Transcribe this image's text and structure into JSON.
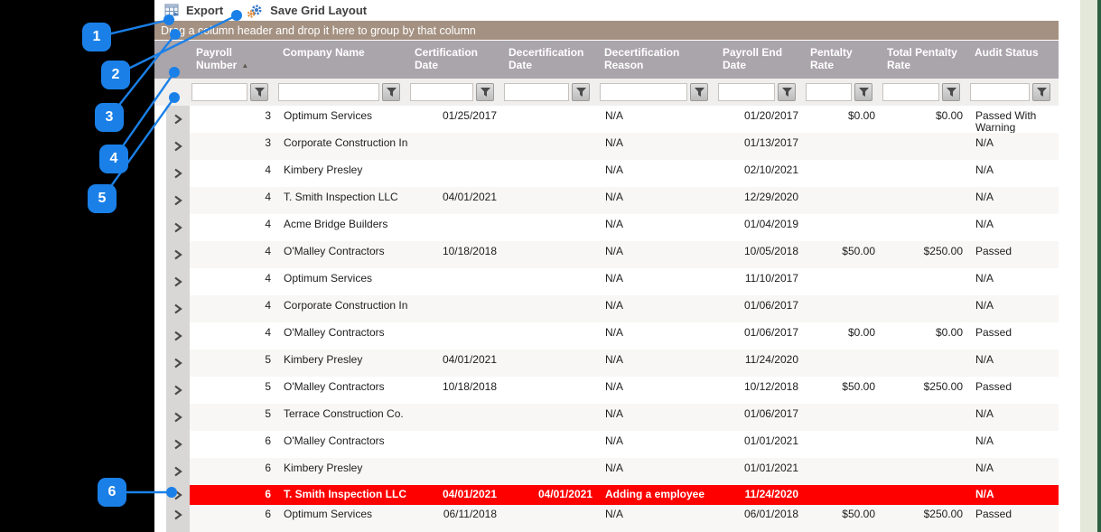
{
  "toolbar": {
    "export_label": "Export",
    "save_layout_label": "Save Grid Layout"
  },
  "grid": {
    "group_hint": "Drag a column header and drop it here to group by that column",
    "columns": [
      {
        "key": "payroll",
        "label": "Payroll Number",
        "align": "right",
        "sort": "asc"
      },
      {
        "key": "company",
        "label": "Company Name",
        "align": "left"
      },
      {
        "key": "cert",
        "label": "Certification Date",
        "align": "right"
      },
      {
        "key": "decert",
        "label": "Decertification Date",
        "align": "right"
      },
      {
        "key": "reason",
        "label": "Decertification Reason",
        "align": "left"
      },
      {
        "key": "end",
        "label": "Payroll End Date",
        "align": "right"
      },
      {
        "key": "rate",
        "label": "Pentalty Rate",
        "align": "right"
      },
      {
        "key": "total",
        "label": "Total Pentalty Rate",
        "align": "right"
      },
      {
        "key": "audit",
        "label": "Audit Status",
        "align": "left"
      }
    ],
    "rows": [
      {
        "payroll": "3",
        "company": "Optimum Services",
        "cert": "01/25/2017",
        "decert": "",
        "reason": "N/A",
        "end": "01/20/2017",
        "rate": "$0.00",
        "total": "$0.00",
        "audit": "Passed With Warning",
        "highlight": false
      },
      {
        "payroll": "3",
        "company": "Corporate Construction Inc.",
        "cert": "",
        "decert": "",
        "reason": "N/A",
        "end": "01/13/2017",
        "rate": "",
        "total": "",
        "audit": "N/A",
        "highlight": false
      },
      {
        "payroll": "4",
        "company": "Kimbery Presley",
        "cert": "",
        "decert": "",
        "reason": "N/A",
        "end": "02/10/2021",
        "rate": "",
        "total": "",
        "audit": "N/A",
        "highlight": false
      },
      {
        "payroll": "4",
        "company": "T. Smith Inspection LLC",
        "cert": "04/01/2021",
        "decert": "",
        "reason": "N/A",
        "end": "12/29/2020",
        "rate": "",
        "total": "",
        "audit": "N/A",
        "highlight": false
      },
      {
        "payroll": "4",
        "company": "Acme Bridge Builders",
        "cert": "",
        "decert": "",
        "reason": "N/A",
        "end": "01/04/2019",
        "rate": "",
        "total": "",
        "audit": "N/A",
        "highlight": false
      },
      {
        "payroll": "4",
        "company": "O'Malley Contractors",
        "cert": "10/18/2018",
        "decert": "",
        "reason": "N/A",
        "end": "10/05/2018",
        "rate": "$50.00",
        "total": "$250.00",
        "audit": "Passed",
        "highlight": false
      },
      {
        "payroll": "4",
        "company": "Optimum Services",
        "cert": "",
        "decert": "",
        "reason": "N/A",
        "end": "11/10/2017",
        "rate": "",
        "total": "",
        "audit": "N/A",
        "highlight": false
      },
      {
        "payroll": "4",
        "company": "Corporate Construction Inc.",
        "cert": "",
        "decert": "",
        "reason": "N/A",
        "end": "01/06/2017",
        "rate": "",
        "total": "",
        "audit": "N/A",
        "highlight": false
      },
      {
        "payroll": "4",
        "company": "O'Malley Contractors",
        "cert": "",
        "decert": "",
        "reason": "N/A",
        "end": "01/06/2017",
        "rate": "$0.00",
        "total": "$0.00",
        "audit": "Passed",
        "highlight": false
      },
      {
        "payroll": "5",
        "company": "Kimbery Presley",
        "cert": "04/01/2021",
        "decert": "",
        "reason": "N/A",
        "end": "11/24/2020",
        "rate": "",
        "total": "",
        "audit": "N/A",
        "highlight": false
      },
      {
        "payroll": "5",
        "company": "O'Malley Contractors",
        "cert": "10/18/2018",
        "decert": "",
        "reason": "N/A",
        "end": "10/12/2018",
        "rate": "$50.00",
        "total": "$250.00",
        "audit": "Passed",
        "highlight": false
      },
      {
        "payroll": "5",
        "company": "Terrace Construction Co.",
        "cert": "",
        "decert": "",
        "reason": "N/A",
        "end": "01/06/2017",
        "rate": "",
        "total": "",
        "audit": "N/A",
        "highlight": false
      },
      {
        "payroll": "6",
        "company": "O'Malley Contractors",
        "cert": "",
        "decert": "",
        "reason": "N/A",
        "end": "01/01/2021",
        "rate": "",
        "total": "",
        "audit": "N/A",
        "highlight": false
      },
      {
        "payroll": "6",
        "company": "Kimbery Presley",
        "cert": "",
        "decert": "",
        "reason": "N/A",
        "end": "01/01/2021",
        "rate": "",
        "total": "",
        "audit": "N/A",
        "highlight": false
      },
      {
        "payroll": "6",
        "company": "T. Smith Inspection LLC",
        "cert": "04/01/2021",
        "decert": "04/01/2021",
        "reason": "Adding a employee",
        "end": "11/24/2020",
        "rate": "",
        "total": "",
        "audit": "N/A",
        "highlight": true
      },
      {
        "payroll": "6",
        "company": "Optimum Services",
        "cert": "06/11/2018",
        "decert": "",
        "reason": "N/A",
        "end": "06/01/2018",
        "rate": "$50.00",
        "total": "$250.00",
        "audit": "Passed",
        "highlight": false
      }
    ]
  },
  "annotations": {
    "callouts": [
      {
        "label": "1"
      },
      {
        "label": "2"
      },
      {
        "label": "3"
      },
      {
        "label": "4"
      },
      {
        "label": "5"
      },
      {
        "label": "6"
      }
    ]
  },
  "colors": {
    "accent_blue": "#1a80e8",
    "highlight_row": "#fe0000",
    "group_bar_bg": "#a49181",
    "header_bg": "#aaa4ab",
    "edge_green": "#2e5f41"
  }
}
